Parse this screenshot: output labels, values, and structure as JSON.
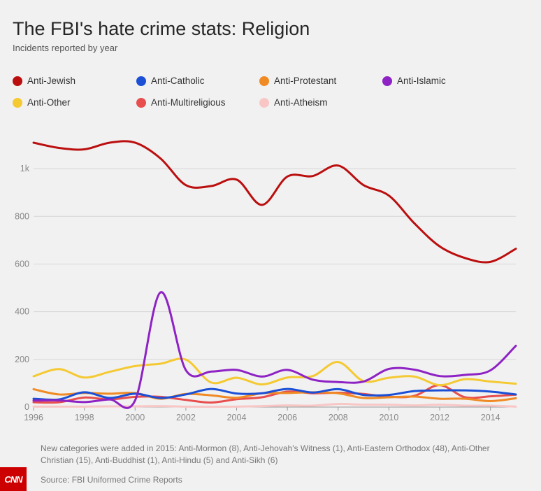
{
  "header": {
    "title": "The FBI's hate crime stats: Religion",
    "subtitle": "Incidents reported by year"
  },
  "footer": {
    "note": "New categories were added in 2015: Anti-Mormon (8), Anti-Jehovah's Witness (1), Anti-Eastern Orthodox (48), Anti-Other Christian (15), Anti-Buddhist (1), Anti-Hindu (5) and Anti-Sikh (6)",
    "source": "Source: FBI Uniformed Crime Reports",
    "logo_text": "CNN"
  },
  "chart_data": {
    "type": "line",
    "title": "The FBI's hate crime stats: Religion",
    "subtitle": "Incidents reported by year",
    "xlabel": "",
    "ylabel": "",
    "xlim": [
      1996,
      2015
    ],
    "ylim": [
      0,
      1150
    ],
    "x_ticks": [
      1996,
      1998,
      2000,
      2002,
      2004,
      2006,
      2008,
      2010,
      2012,
      2014
    ],
    "x_tick_labels": [
      "1996",
      "1998",
      "2000",
      "2002",
      "2004",
      "2006",
      "2008",
      "2010",
      "2012",
      "2014"
    ],
    "y_ticks": [
      0,
      200,
      400,
      600,
      800,
      1000
    ],
    "y_tick_labels": [
      "0",
      "200",
      "400",
      "600",
      "800",
      "1k"
    ],
    "grid": true,
    "legend_position": "top",
    "x": [
      1996,
      1997,
      1998,
      1999,
      2000,
      2001,
      2002,
      2003,
      2004,
      2005,
      2006,
      2007,
      2008,
      2009,
      2010,
      2011,
      2012,
      2013,
      2014,
      2015
    ],
    "series": [
      {
        "name": "Anti-Jewish",
        "color": "#bb0e0e",
        "values": [
          1109,
          1087,
          1081,
          1109,
          1109,
          1043,
          931,
          927,
          954,
          848,
          967,
          969,
          1013,
          931,
          887,
          771,
          674,
          625,
          609,
          664
        ]
      },
      {
        "name": "Anti-Catholic",
        "color": "#1a4fd6",
        "values": [
          35,
          32,
          62,
          38,
          56,
          38,
          53,
          76,
          57,
          58,
          76,
          61,
          75,
          51,
          51,
          67,
          70,
          70,
          65,
          53
        ]
      },
      {
        "name": "Anti-Protestant",
        "color": "#f08a24",
        "values": [
          75,
          53,
          59,
          56,
          59,
          35,
          55,
          49,
          39,
          58,
          59,
          62,
          58,
          38,
          41,
          44,
          35,
          35,
          25,
          37
        ]
      },
      {
        "name": "Anti-Islamic",
        "color": "#8e22c4",
        "values": [
          27,
          28,
          21,
          32,
          28,
          481,
          155,
          149,
          156,
          128,
          156,
          115,
          105,
          107,
          160,
          157,
          130,
          135,
          154,
          257
        ]
      },
      {
        "name": "Anti-Other",
        "color": "#f4c932",
        "values": [
          129,
          159,
          124,
          148,
          172,
          182,
          199,
          103,
          123,
          95,
          124,
          130,
          189,
          109,
          123,
          128,
          92,
          117,
          107,
          98
        ]
      },
      {
        "name": "Anti-Multireligious",
        "color": "#e84e4e",
        "values": [
          20,
          20,
          40,
          32,
          43,
          43,
          30,
          19,
          33,
          41,
          65,
          58,
          60,
          55,
          43,
          47,
          92,
          41,
          45,
          52
        ]
      },
      {
        "name": "Anti-Atheism",
        "color": "#f9c6c6",
        "values": [
          2,
          2,
          2,
          3,
          3,
          4,
          2,
          1,
          2,
          4,
          7,
          6,
          13,
          10,
          10,
          7,
          10,
          6,
          6,
          2
        ]
      }
    ]
  }
}
